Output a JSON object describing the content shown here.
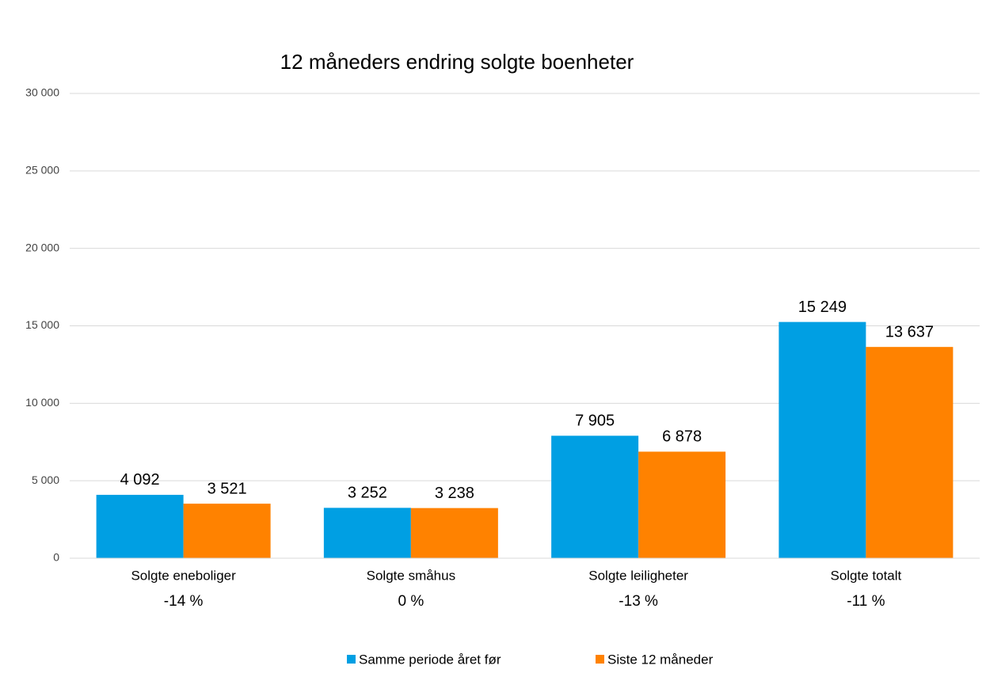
{
  "chart_data": {
    "type": "bar",
    "title": "12 måneders endring solgte boenheter",
    "categories": [
      "Solgte eneboliger",
      "Solgte småhus",
      "Solgte leiligheter",
      "Solgte totalt"
    ],
    "annotations": [
      "-14 %",
      "0 %",
      "-13 %",
      "-11 %"
    ],
    "series": [
      {
        "name": "Samme periode året før",
        "color": "#009fe3",
        "values": [
          4092,
          3252,
          7905,
          15249
        ],
        "value_labels": [
          "4 092",
          "3 252",
          "7 905",
          "15 249"
        ]
      },
      {
        "name": "Siste 12 måneder",
        "color": "#ff8200",
        "values": [
          3521,
          3238,
          6878,
          13637
        ],
        "value_labels": [
          "3 521",
          "3 238",
          "6 878",
          "13 637"
        ]
      }
    ],
    "ylim": [
      0,
      30000
    ],
    "yticks": [
      0,
      {
        "value": 5000,
        "label": "5 000"
      },
      {
        "value": 10000,
        "label": "10 000"
      },
      {
        "value": 15000,
        "label": "15 000"
      },
      {
        "value": 20000,
        "label": "20 000"
      },
      {
        "value": 25000,
        "label": "25 000"
      },
      {
        "value": 30000,
        "label": "30 000"
      }
    ],
    "grid": true,
    "legend": "bottom"
  }
}
